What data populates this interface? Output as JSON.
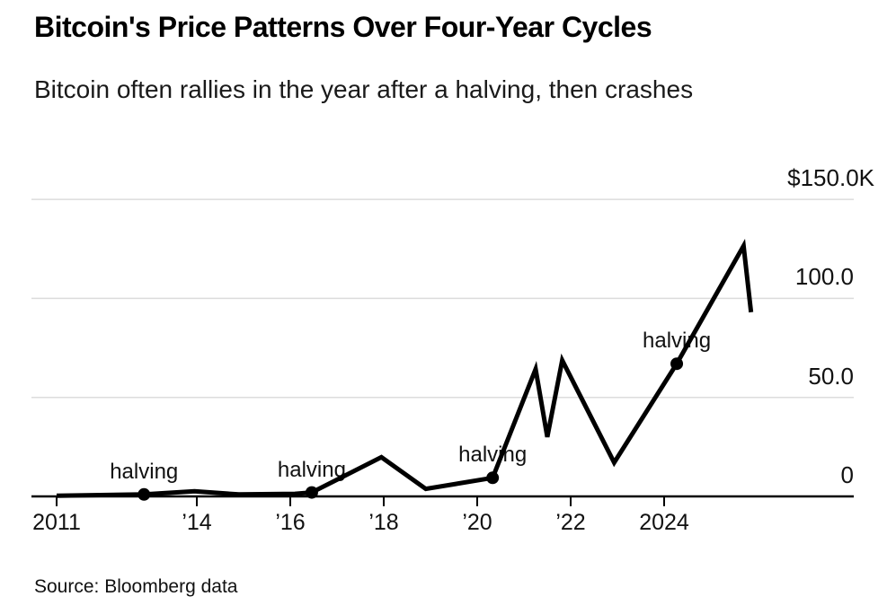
{
  "chart_data": {
    "type": "line",
    "title": "Bitcoin's Price Patterns Over Four-Year Cycles",
    "subtitle": "Bitcoin often rallies in the year after a halving, then crashes",
    "source": "Source: Bloomberg data",
    "xlabel": "",
    "ylabel": "",
    "xlim": [
      2010.5,
      2028
    ],
    "ylim": [
      0,
      150
    ],
    "grid": "horizontal",
    "legend": "none",
    "line_color": "#000000",
    "grid_color": "#dcdcdc",
    "axis_color": "#000000",
    "y_unit": "USD thousands",
    "series": [
      {
        "name": "Bitcoin price ($K)",
        "points": [
          [
            2011.0,
            0.3
          ],
          [
            2012.87,
            1.0
          ],
          [
            2013.95,
            2.6
          ],
          [
            2014.9,
            1.0
          ],
          [
            2016.1,
            1.3
          ],
          [
            2016.46,
            2.0
          ],
          [
            2017.95,
            19.8
          ],
          [
            2018.9,
            3.8
          ],
          [
            2020.33,
            9.4
          ],
          [
            2021.25,
            64.3
          ],
          [
            2021.5,
            30.0
          ],
          [
            2021.82,
            68.7
          ],
          [
            2022.93,
            17.1
          ],
          [
            2024.27,
            67.0
          ],
          [
            2025.7,
            126.5
          ],
          [
            2025.86,
            93.0
          ]
        ]
      }
    ],
    "markers": [
      {
        "label": "halving",
        "year": 2012.87,
        "value": 1.0
      },
      {
        "label": "halving",
        "year": 2016.46,
        "value": 2.0
      },
      {
        "label": "halving",
        "year": 2020.33,
        "value": 9.4
      },
      {
        "label": "halving",
        "year": 2024.27,
        "value": 67.0
      }
    ],
    "x_ticks": [
      {
        "year": 2011,
        "label": "2011"
      },
      {
        "year": 2014,
        "label": "’14"
      },
      {
        "year": 2016,
        "label": "’16"
      },
      {
        "year": 2018,
        "label": "’18"
      },
      {
        "year": 2020,
        "label": "’20"
      },
      {
        "year": 2022,
        "label": "’22"
      },
      {
        "year": 2024,
        "label": "2024"
      }
    ],
    "y_ticks": [
      {
        "value": 150,
        "label": "$150.0K"
      },
      {
        "value": 100,
        "label": "100.0"
      },
      {
        "value": 50,
        "label": "50.0"
      },
      {
        "value": 0,
        "label": "0"
      }
    ]
  }
}
